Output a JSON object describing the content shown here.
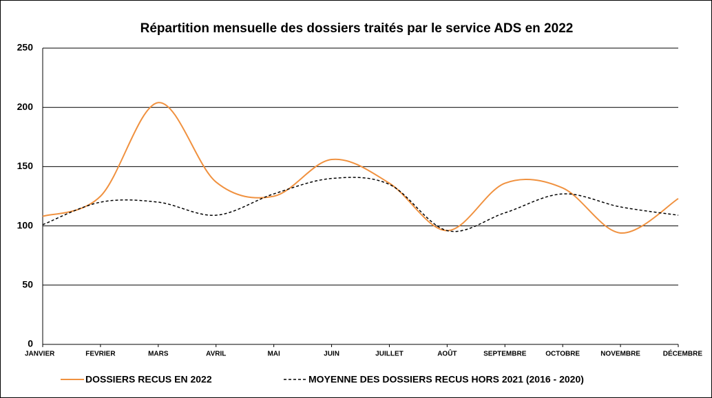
{
  "chart_data": {
    "type": "line",
    "title": "Répartition mensuelle des dossiers traités par le service ADS en 2022",
    "categories": [
      "JANVIER",
      "FEVRIER",
      "MARS",
      "AVRIL",
      "MAI",
      "JUIN",
      "JUILLET",
      "AOÛT",
      "SEPTEMBRE",
      "OCTOBRE",
      "NOVEMBRE",
      "DÉCEMBRE"
    ],
    "series": [
      {
        "name": "DOSSIERS RECUS EN 2022",
        "color": "#f0913f",
        "dashed": false,
        "values": [
          108,
          125,
          204,
          137,
          125,
          156,
          136,
          96,
          136,
          132,
          94,
          123
        ]
      },
      {
        "name": "MOYENNE DES DOSSIERS RECUS HORS 2021 (2016 - 2020)",
        "color": "#000000",
        "dashed": true,
        "values": [
          101,
          120,
          120,
          109,
          127,
          140,
          135,
          96,
          111,
          127,
          116,
          109
        ]
      }
    ],
    "ylim": [
      0,
      250
    ],
    "yticks": [
      0,
      50,
      100,
      150,
      200,
      250
    ],
    "grid": true,
    "smooth": true,
    "legend": "bottom"
  }
}
